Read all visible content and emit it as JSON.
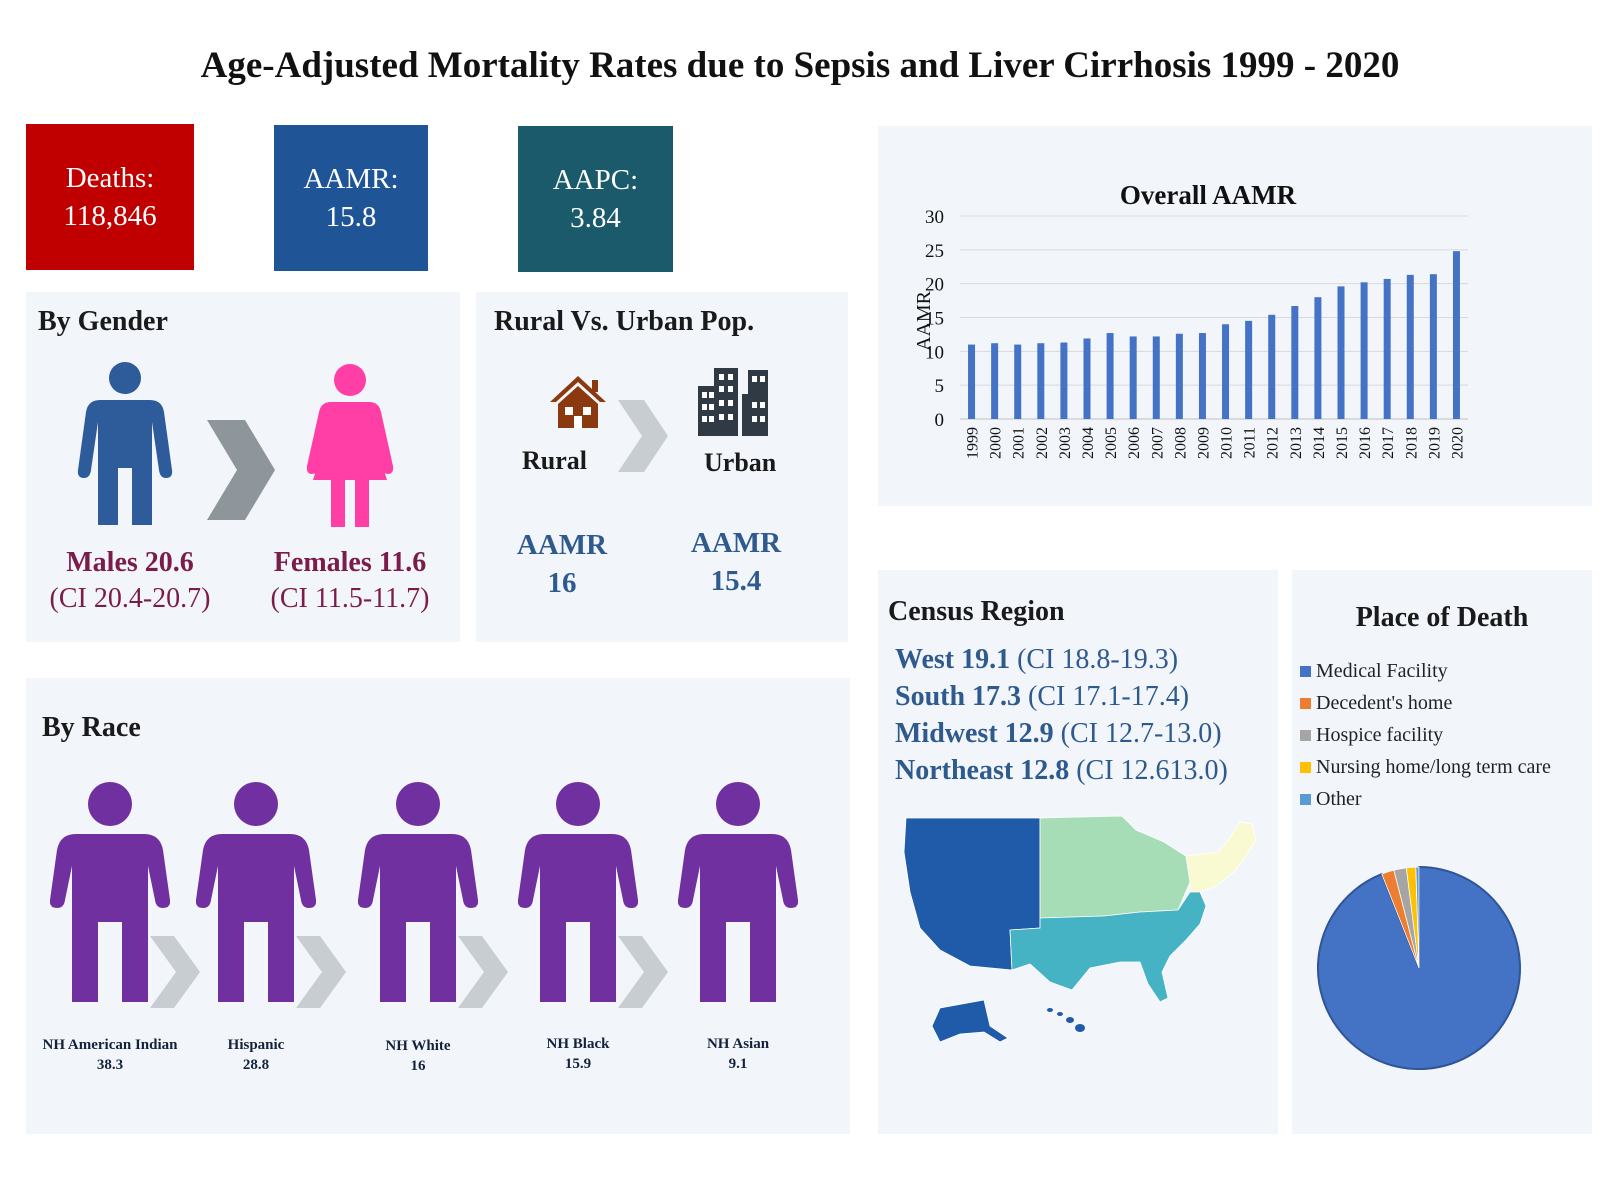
{
  "title": "Age-Adjusted Mortality Rates due to Sepsis and Liver Cirrhosis 1999 - 2020",
  "stats": [
    {
      "label": "Deaths:",
      "value": "118,846",
      "color": "#c00000"
    },
    {
      "label": "AAMR:",
      "value": "15.8",
      "color": "#1f5597"
    },
    {
      "label": "AAPC:",
      "value": "3.84",
      "color": "#1a5a6b"
    }
  ],
  "gender": {
    "title": "By Gender",
    "male": {
      "name": "Males 20.6",
      "ci": "(CI 20.4-20.7)",
      "color": "#2e5b9a"
    },
    "female": {
      "name": "Females 11.6",
      "ci": "(CI 11.5-11.7)",
      "color": "#ff3fa6"
    }
  },
  "rural_urban": {
    "title": "Rural Vs. Urban Pop.",
    "rural": {
      "label": "Rural",
      "aamr_label": "AAMR",
      "aamr": "16"
    },
    "urban": {
      "label": "Urban",
      "aamr_label": "AAMR",
      "aamr": "15.4"
    }
  },
  "race": {
    "title": "By Race",
    "items": [
      {
        "name": "NH American Indian",
        "value": "38.3"
      },
      {
        "name": "Hispanic",
        "value": "28.8"
      },
      {
        "name": "NH White",
        "value": "16"
      },
      {
        "name": "NH Black",
        "value": "15.9"
      },
      {
        "name": "NH Asian",
        "value": "9.1"
      }
    ],
    "color": "#7030a0"
  },
  "census": {
    "title": "Census Region",
    "rows": [
      {
        "name": "West 19.1",
        "ci": "(CI 18.8-19.3)"
      },
      {
        "name": "South 17.3",
        "ci": "(CI 17.1-17.4)"
      },
      {
        "name": "Midwest 12.9",
        "ci": "(CI 12.7-13.0)"
      },
      {
        "name": "Northeast 12.8",
        "ci": "(CI 12.613.0)"
      }
    ],
    "map_colors": {
      "west": "#1f5ba8",
      "south": "#45b3c3",
      "midwest": "#a6dcb6",
      "northeast": "#fafad2"
    }
  },
  "chart_data": [
    {
      "type": "bar",
      "title": "Overall AAMR",
      "xlabel": "",
      "ylabel": "AAMR",
      "ylim": [
        0,
        30
      ],
      "yticks": [
        0,
        5,
        10,
        15,
        20,
        25,
        30
      ],
      "grid": true,
      "color": "#4472c4",
      "categories": [
        "1999",
        "2000",
        "2001",
        "2002",
        "2003",
        "2004",
        "2005",
        "2006",
        "2007",
        "2008",
        "2009",
        "2010",
        "2011",
        "2012",
        "2013",
        "2014",
        "2015",
        "2016",
        "2017",
        "2018",
        "2019",
        "2020"
      ],
      "values": [
        11.0,
        11.2,
        11.0,
        11.2,
        11.3,
        11.9,
        12.7,
        12.2,
        12.2,
        12.6,
        12.7,
        14.0,
        14.5,
        15.4,
        16.7,
        18.0,
        19.6,
        20.2,
        20.7,
        21.3,
        21.4,
        24.8
      ]
    },
    {
      "type": "pie",
      "title": "Place of Death",
      "categories": [
        "Medical Facility",
        "Decedent's home",
        "Hospice facility",
        "Nursing home/long term care",
        "Other"
      ],
      "values": [
        94.0,
        2.0,
        2.0,
        1.5,
        0.5
      ],
      "colors": [
        "#4472c4",
        "#ed7d31",
        "#a5a5a5",
        "#ffc000",
        "#5b9bd5"
      ],
      "legend": "top"
    }
  ]
}
